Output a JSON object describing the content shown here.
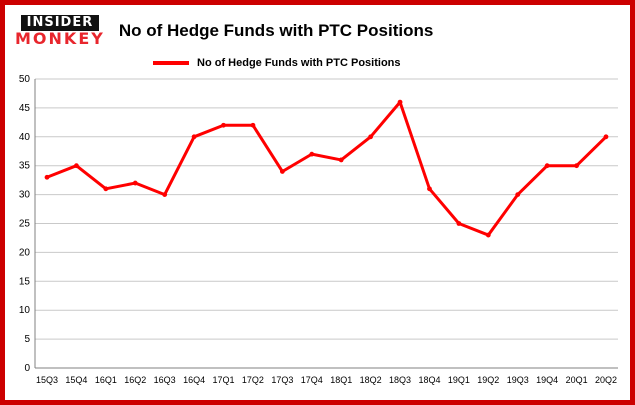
{
  "header": {
    "logo_line1": "INSIDER",
    "logo_line2": "MONKEY",
    "title": "No of Hedge Funds with PTC Positions"
  },
  "legend": {
    "label": "No of Hedge Funds with PTC Positions"
  },
  "chart_data": {
    "type": "line",
    "title": "No of Hedge Funds with PTC Positions",
    "categories": [
      "15Q3",
      "15Q4",
      "16Q1",
      "16Q2",
      "16Q3",
      "16Q4",
      "17Q1",
      "17Q2",
      "17Q3",
      "17Q4",
      "18Q1",
      "18Q2",
      "18Q3",
      "18Q4",
      "19Q1",
      "19Q2",
      "19Q3",
      "19Q4",
      "20Q1",
      "20Q2"
    ],
    "series": [
      {
        "name": "No of Hedge Funds with PTC Positions",
        "color": "#ff0000",
        "values": [
          33,
          35,
          31,
          32,
          30,
          40,
          42,
          42,
          34,
          37,
          36,
          40,
          46,
          31,
          25,
          23,
          30,
          35,
          35,
          40
        ]
      }
    ],
    "ylim": [
      0,
      50
    ],
    "ytick_step": 5,
    "grid": true,
    "legend_position": "top",
    "xlabel": "",
    "ylabel": ""
  },
  "colors": {
    "border": "#cc0000",
    "grid": "#c9c9c9",
    "axis": "#808080",
    "line": "#ff0000",
    "logo_bg": "#111111",
    "logo_red": "#e8262d"
  }
}
